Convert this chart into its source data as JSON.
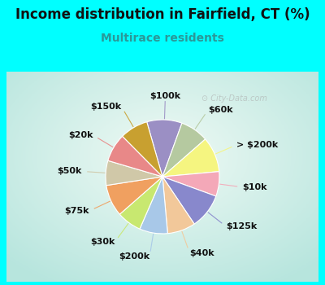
{
  "title": "Income distribution in Fairfield, CT (%)",
  "subtitle": "Multirace residents",
  "watermark": "City-Data.com",
  "background_cyan": "#00FFFF",
  "background_chart_edge": "#b8e8d0",
  "background_chart_center": "#f0f8f4",
  "segments": [
    {
      "label": "$100k",
      "value": 10,
      "color": "#9b8fc4"
    },
    {
      "label": "$60k",
      "value": 8,
      "color": "#b5c9a0"
    },
    {
      "label": "> $200k",
      "value": 10,
      "color": "#f5f580"
    },
    {
      "label": "$10k",
      "value": 7,
      "color": "#f4a8b8"
    },
    {
      "label": "$125k",
      "value": 10,
      "color": "#8888cc"
    },
    {
      "label": "$40k",
      "value": 8,
      "color": "#f2c89a"
    },
    {
      "label": "$200k",
      "value": 8,
      "color": "#a8c8e8"
    },
    {
      "label": "$30k",
      "value": 7,
      "color": "#c8e870"
    },
    {
      "label": "$75k",
      "value": 9,
      "color": "#f0a060"
    },
    {
      "label": "$50k",
      "value": 7,
      "color": "#d0c8a8"
    },
    {
      "label": "$20k",
      "value": 8,
      "color": "#e88888"
    },
    {
      "label": "$150k",
      "value": 8,
      "color": "#c8a030"
    }
  ],
  "title_fontsize": 12,
  "subtitle_fontsize": 10,
  "label_fontsize": 8,
  "startangle": 106
}
